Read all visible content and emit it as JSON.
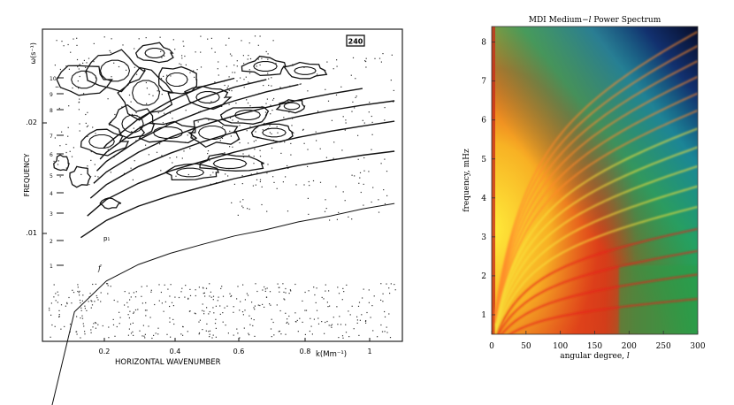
{
  "chart_data": [
    {
      "type": "scatter",
      "title": "",
      "box_label": "240",
      "xlabel": "HORIZONTAL WAVENUMBER",
      "xlabel_unit": "k(Mm⁻¹)",
      "ylabel": "FREQUENCY",
      "ylabel_top": "ω(s⁻¹)",
      "x_ticks": [
        "0.2",
        "0.4",
        "0.6",
        "0.8",
        "1"
      ],
      "y_ticks_left": [
        ".02",
        ".01"
      ],
      "y_index_labels": [
        "10",
        "9",
        "8",
        "7",
        "6",
        "5",
        "4",
        "3",
        "2",
        "1"
      ],
      "ridge_labels": [
        "p₁",
        "f"
      ],
      "xlim": [
        0.0,
        1.12
      ],
      "series": [
        {
          "label": "f",
          "x": [
            0.02,
            0.1,
            0.2,
            0.3,
            0.4,
            0.5,
            0.6,
            0.7,
            0.8,
            0.9,
            1.0,
            1.1
          ],
          "y": [
            0.0032,
            0.0062,
            0.0075,
            0.0083,
            0.0089,
            0.0094,
            0.0099,
            0.0103,
            0.0108,
            0.0112,
            0.0117,
            0.0121
          ]
        },
        {
          "label": "p₁",
          "x": [
            0.12,
            0.2,
            0.3,
            0.4,
            0.5,
            0.6,
            0.7,
            0.8,
            0.9,
            1.0,
            1.1
          ],
          "y": [
            0.0098,
            0.0109,
            0.0119,
            0.0127,
            0.0134,
            0.0141,
            0.0147,
            0.0153,
            0.0158,
            0.0163,
            0.0167
          ]
        },
        {
          "label": "",
          "x": [
            0.14,
            0.2,
            0.3,
            0.4,
            0.5,
            0.6,
            0.7,
            0.8,
            0.9,
            1.0,
            1.1
          ],
          "y": [
            0.0112,
            0.0124,
            0.0137,
            0.0148,
            0.0157,
            0.0166,
            0.0174,
            0.0182,
            0.0189,
            0.0195,
            0.0201
          ]
        },
        {
          "label": "",
          "x": [
            0.15,
            0.2,
            0.3,
            0.4,
            0.5,
            0.6,
            0.7,
            0.8,
            0.9,
            1.0,
            1.1
          ],
          "y": [
            0.0125,
            0.0136,
            0.0152,
            0.0165,
            0.0177,
            0.0188,
            0.0198,
            0.0207,
            0.0215,
            0.0222,
            0.0228
          ]
        },
        {
          "label": "",
          "x": [
            0.16,
            0.2,
            0.3,
            0.4,
            0.5,
            0.6,
            0.7,
            0.8,
            0.9,
            1.0
          ],
          "y": [
            0.0137,
            0.0147,
            0.0166,
            0.0182,
            0.0196,
            0.0208,
            0.0219,
            0.0229,
            0.0238,
            0.0246
          ]
        },
        {
          "label": "",
          "x": [
            0.17,
            0.2,
            0.3,
            0.4,
            0.5,
            0.6,
            0.7,
            0.8
          ],
          "y": [
            0.0148,
            0.0157,
            0.0179,
            0.0198,
            0.0214,
            0.0228,
            0.0241,
            0.0252
          ]
        },
        {
          "label": "",
          "x": [
            0.18,
            0.2,
            0.3,
            0.4,
            0.5,
            0.6,
            0.7
          ],
          "y": [
            0.0159,
            0.0166,
            0.0192,
            0.0213,
            0.0232,
            0.0248,
            0.026
          ]
        },
        {
          "label": "",
          "x": [
            0.19,
            0.2,
            0.3,
            0.4,
            0.5,
            0.6
          ],
          "y": [
            0.017,
            0.0174,
            0.0204,
            0.0228,
            0.0249,
            0.0262
          ]
        }
      ]
    },
    {
      "type": "heatmap",
      "title": "MDI Medium-l Power Spectrum",
      "title_prefix": "MDI Medium−",
      "title_italic": "l",
      "title_suffix": " Power Spectrum",
      "xlabel": "angular degree, ",
      "xlabel_italic": "l",
      "ylabel": "frequency, mHz",
      "xlim": [
        0,
        300
      ],
      "ylim": [
        0.5,
        8.4
      ],
      "x_ticks": [
        0,
        50,
        100,
        150,
        200,
        250,
        300
      ],
      "y_ticks": [
        1,
        2,
        3,
        4,
        5,
        6,
        7,
        8
      ],
      "colormap": [
        "#ffd81a",
        "#f4a020",
        "#e2301a",
        "#d12616",
        "#2c9a4a",
        "#1fa38c",
        "#143a80",
        "#081030"
      ],
      "ridges_nu0_mHz": [
        1.12,
        1.62,
        2.1,
        2.55,
        3.0,
        3.42,
        3.83,
        4.22,
        4.6,
        4.97,
        5.32,
        5.66,
        5.98,
        6.29,
        6.58
      ]
    }
  ]
}
